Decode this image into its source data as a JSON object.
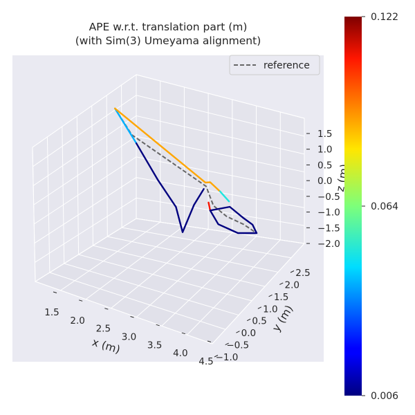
{
  "chart_data": {
    "type": "line",
    "title_lines": [
      "APE w.r.t. translation part (m)",
      "(with Sim(3) Umeyama alignment)"
    ],
    "xlabel": "x (m)",
    "ylabel": "y (m)",
    "zlabel": "z (m)",
    "x_ticks": [
      "1.5",
      "2.0",
      "2.5",
      "3.0",
      "3.5",
      "4.0",
      "4.5"
    ],
    "y_ticks": [
      "−1.0",
      "−0.5",
      "0.0",
      "0.5",
      "1.0",
      "1.5",
      "2.0",
      "2.5"
    ],
    "z_ticks": [
      "−2.0",
      "−1.5",
      "−1.0",
      "−0.5",
      "0.0",
      "0.5",
      "1.0",
      "1.5"
    ],
    "legend": [
      {
        "label": "reference",
        "style": "dashed",
        "color": "#666666"
      }
    ],
    "legend_position": "top-right",
    "colorbar": {
      "colormap": "jet",
      "min": 0.006,
      "mid": 0.064,
      "max": 0.122,
      "tick_labels": [
        "0.006",
        "0.064",
        "0.122"
      ]
    },
    "grid": true,
    "pane_color": "#eaeaf2",
    "estimate_segments": [
      {
        "error": 0.04,
        "points": [
          [
            1.65,
            -0.1,
            2.05
          ],
          [
            2.1,
            -0.15,
            1.2
          ]
        ]
      },
      {
        "error": 0.006,
        "points": [
          [
            2.1,
            -0.15,
            1.2
          ],
          [
            2.55,
            -0.2,
            0.3
          ],
          [
            2.95,
            -0.3,
            -0.3
          ],
          [
            3.1,
            -0.35,
            -1.0
          ],
          [
            3.25,
            -0.1,
            -0.2
          ],
          [
            3.4,
            0.05,
            0.3
          ]
        ]
      },
      {
        "error": 0.09,
        "points": [
          [
            1.65,
            -0.1,
            2.05
          ],
          [
            3.4,
            0.15,
            0.45
          ],
          [
            3.45,
            0.3,
            0.4
          ],
          [
            3.6,
            0.45,
            0.1
          ]
        ]
      },
      {
        "error": 0.05,
        "points": [
          [
            3.6,
            0.45,
            0.1
          ],
          [
            3.75,
            0.55,
            -0.2
          ]
        ]
      },
      {
        "error": 0.11,
        "points": [
          [
            3.4,
            0.35,
            -0.3
          ],
          [
            3.45,
            0.3,
            -0.5
          ]
        ]
      },
      {
        "error": 0.006,
        "points": [
          [
            3.45,
            0.3,
            -0.5
          ],
          [
            3.75,
            0.6,
            -0.4
          ],
          [
            3.95,
            0.85,
            -0.8
          ],
          [
            4.05,
            1.1,
            -1.1
          ],
          [
            4.1,
            1.2,
            -1.4
          ]
        ]
      },
      {
        "error": 0.006,
        "points": [
          [
            3.45,
            0.3,
            -0.5
          ],
          [
            3.55,
            0.5,
            -1.0
          ],
          [
            3.85,
            0.8,
            -1.3
          ],
          [
            4.1,
            1.2,
            -1.4
          ]
        ]
      }
    ],
    "reference": [
      [
        1.65,
        -0.1,
        2.05
      ],
      [
        2.0,
        -0.12,
        1.4
      ],
      [
        3.4,
        0.2,
        0.3
      ],
      [
        3.5,
        0.35,
        -0.35
      ],
      [
        3.7,
        0.55,
        -0.7
      ],
      [
        3.95,
        0.85,
        -1.0
      ],
      [
        4.1,
        1.2,
        -1.4
      ]
    ]
  }
}
